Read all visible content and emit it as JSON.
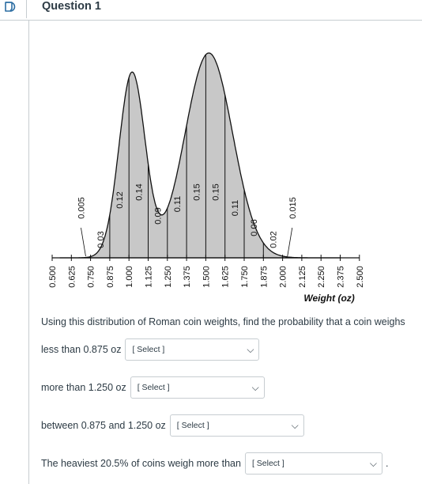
{
  "header": {
    "title": "Question 1",
    "flag_icon": "flag-icon"
  },
  "chart_data": {
    "type": "area",
    "xlabel": "Weight (oz)",
    "x_ticks": [
      "0.500",
      "0.625",
      "0.750",
      "0.875",
      "1.000",
      "1.125",
      "1.250",
      "1.375",
      "1.500",
      "1.625",
      "1.750",
      "1.875",
      "2.000",
      "2.125",
      "2.250",
      "2.375",
      "2.500"
    ],
    "bins": [
      {
        "from": 0.625,
        "to": 0.75,
        "label": "0.005"
      },
      {
        "from": 0.75,
        "to": 0.875,
        "label": "0.03"
      },
      {
        "from": 0.875,
        "to": 1.0,
        "label": "0.12"
      },
      {
        "from": 1.0,
        "to": 1.125,
        "label": "0.14"
      },
      {
        "from": 1.125,
        "to": 1.25,
        "label": "0.09"
      },
      {
        "from": 1.25,
        "to": 1.375,
        "label": "0.11"
      },
      {
        "from": 1.375,
        "to": 1.5,
        "label": "0.15"
      },
      {
        "from": 1.5,
        "to": 1.625,
        "label": "0.15"
      },
      {
        "from": 1.625,
        "to": 1.75,
        "label": "0.11"
      },
      {
        "from": 1.75,
        "to": 1.875,
        "label": "0.06"
      },
      {
        "from": 1.875,
        "to": 2.0,
        "label": "0.02"
      },
      {
        "from": 2.0,
        "to": 2.125,
        "label": "0.015"
      }
    ],
    "fill_color": "#c8c8c8"
  },
  "question": {
    "prompt": "Using this distribution of Roman coin weights, find the probability that a coin weighs",
    "items": [
      {
        "label": "less than 0.875 oz",
        "select": "[ Select ]"
      },
      {
        "label": "more than 1.250 oz",
        "select": "[ Select ]"
      },
      {
        "label": "between 0.875 and 1.250 oz",
        "select": "[ Select ]"
      },
      {
        "label": "The heaviest 20.5% of coins weigh more than",
        "select": "[ Select ]",
        "suffix": "."
      }
    ]
  }
}
